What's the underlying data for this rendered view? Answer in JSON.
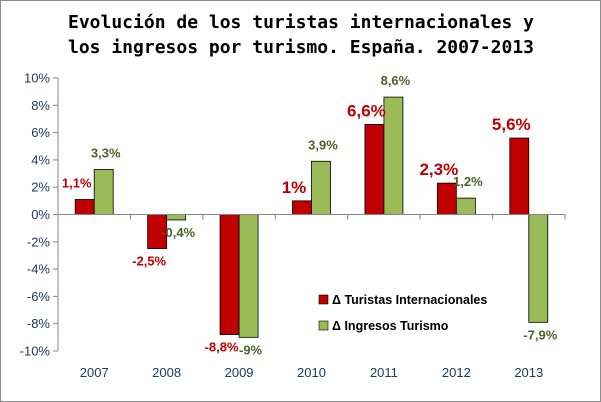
{
  "chart_data": {
    "type": "bar",
    "title": [
      "Evolución de los turistas internacionales y",
      "los ingresos por turismo. España. 2007-2013"
    ],
    "categories": [
      "2007",
      "2008",
      "2009",
      "2010",
      "2011",
      "2012",
      "2013"
    ],
    "series": [
      {
        "name": "Δ Turistas Internacionales",
        "color": "#c00000",
        "values": [
          1.1,
          -2.5,
          -8.8,
          1.0,
          6.6,
          2.3,
          5.6
        ],
        "labels": [
          "1,1%",
          "-2,5%",
          "-8,8%",
          "1%",
          "6,6%",
          "2,3%",
          "5,6%"
        ],
        "label_sizes": [
          "small",
          "small",
          "small",
          "large",
          "large",
          "large",
          "large"
        ]
      },
      {
        "name": "Δ Ingresos Turismo",
        "color": "#9bbb59",
        "values": [
          3.3,
          -0.4,
          -9.0,
          3.9,
          8.6,
          1.2,
          -7.9
        ],
        "labels": [
          "3,3%",
          "-0,4%",
          "-9%",
          "3,9%",
          "8,6%",
          "1,2%",
          "-7,9%"
        ],
        "label_colors": [
          "#4f6228"
        ]
      }
    ],
    "yticks": [
      "10%",
      "8%",
      "6%",
      "4%",
      "2%",
      "0%",
      "-2%",
      "-4%",
      "-6%",
      "-8%",
      "-10%"
    ],
    "ylim": [
      -10,
      10
    ],
    "legend_position": "bottom-right",
    "grid": false
  }
}
